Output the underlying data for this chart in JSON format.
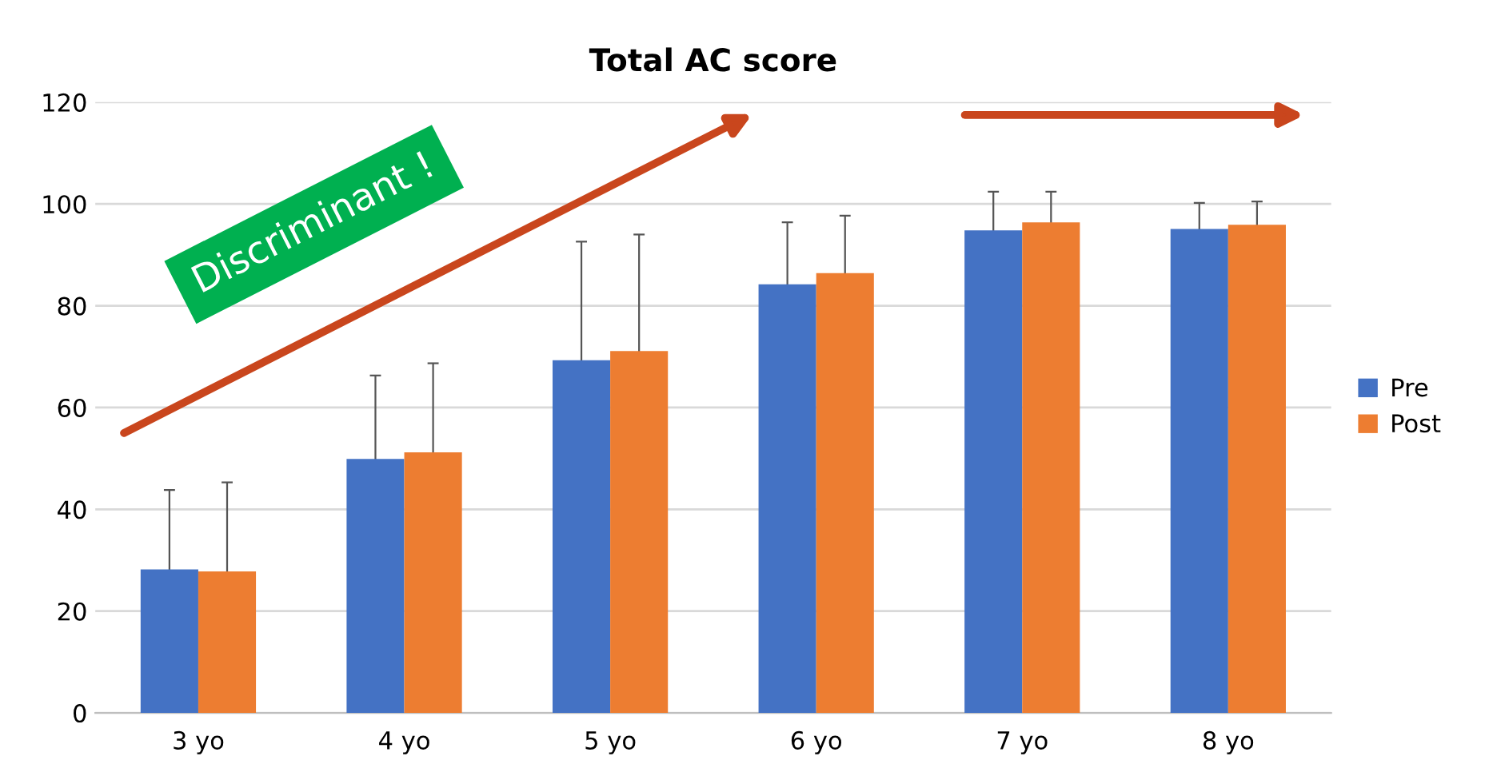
{
  "chart_data": {
    "type": "bar",
    "title": "Total AC score",
    "categories": [
      "3 yo",
      "4 yo",
      "5 yo",
      "6 yo",
      "7 yo",
      "8 yo"
    ],
    "series": [
      {
        "name": "Pre",
        "color": "#4472c4",
        "values": [
          28.2,
          49.9,
          69.3,
          84.2,
          94.8,
          95.1
        ],
        "errors": [
          15.6,
          16.4,
          23.3,
          12.2,
          7.6,
          5.1
        ]
      },
      {
        "name": "Post",
        "color": "#ed7d31",
        "values": [
          27.8,
          51.2,
          71.1,
          86.4,
          96.4,
          95.9
        ],
        "errors": [
          17.5,
          17.5,
          22.9,
          11.3,
          6.0,
          4.6
        ]
      }
    ],
    "ylim": [
      0,
      120
    ],
    "yticks": [
      0,
      20,
      40,
      60,
      80,
      100,
      120
    ],
    "grid": "y",
    "legend": "right",
    "annotations": [
      "Discriminant !"
    ]
  }
}
